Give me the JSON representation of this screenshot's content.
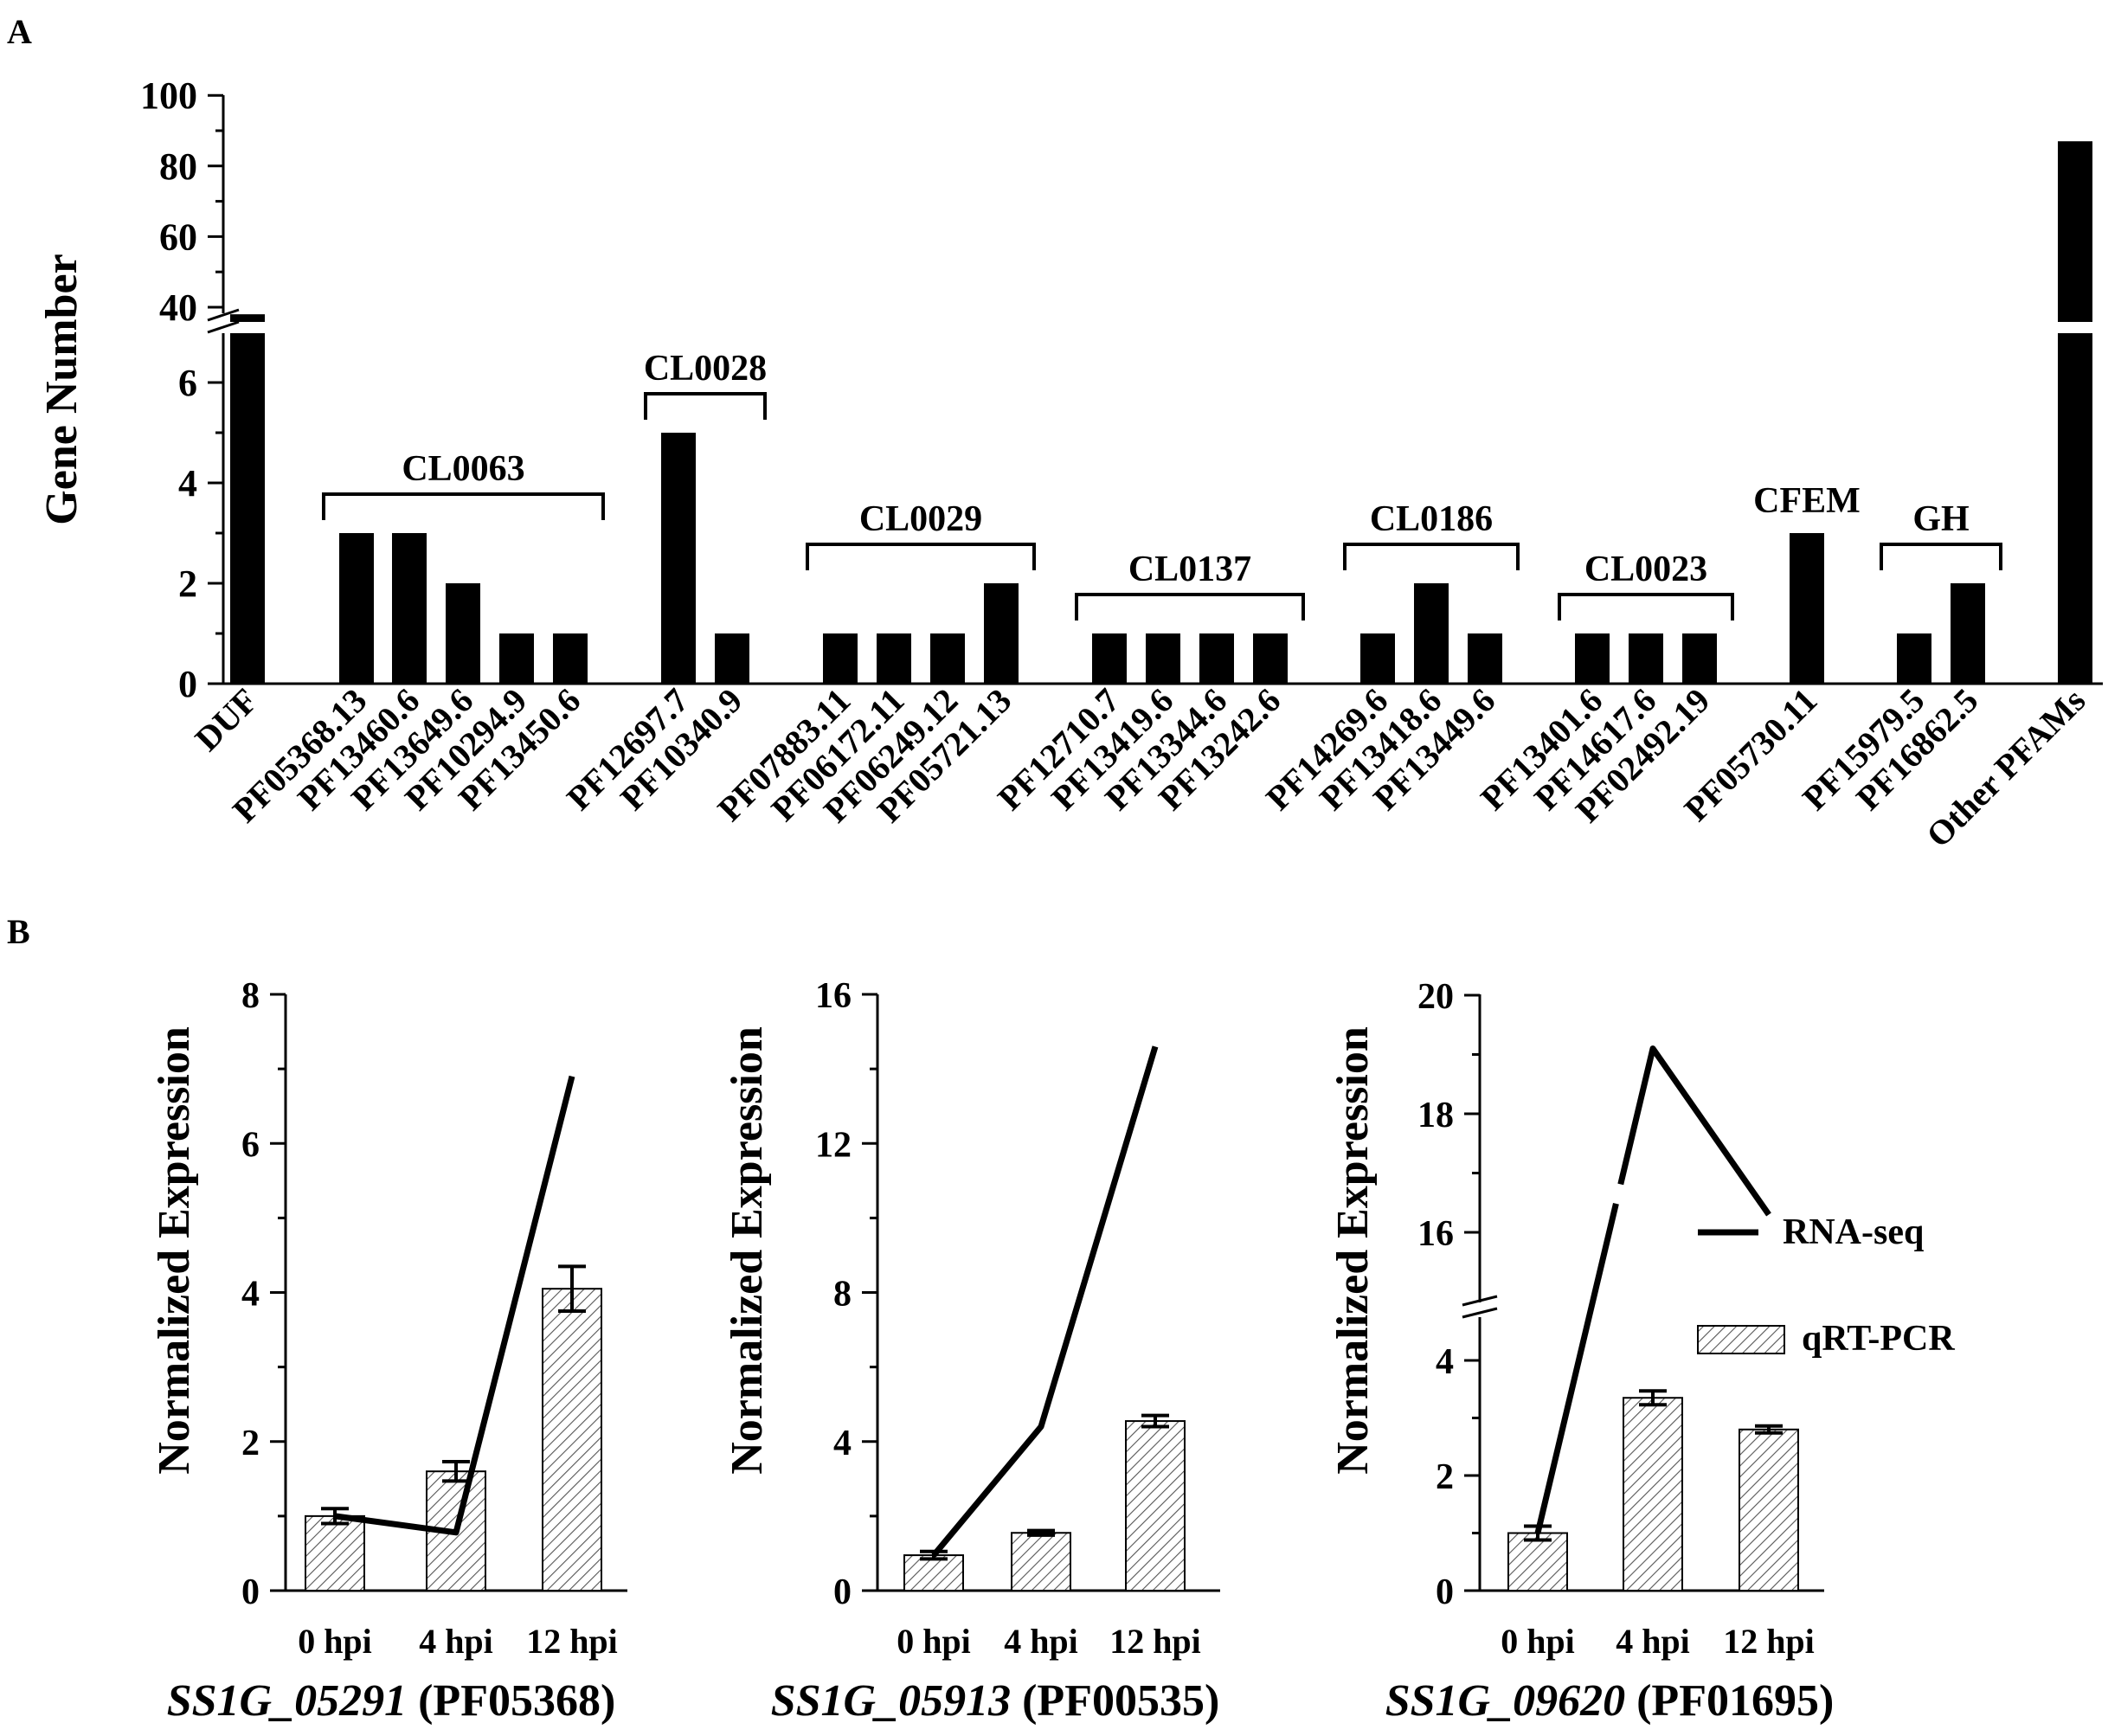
{
  "panel_a_label": "A",
  "panel_b_label": "B",
  "chart_data": [
    {
      "type": "bar",
      "panel": "A",
      "ylabel": "Gene Number",
      "y_lower_ticks": [
        "0",
        "2",
        "4",
        "6"
      ],
      "y_upper_ticks": [
        "40",
        "60",
        "80",
        "100"
      ],
      "y_lower_range": [
        0,
        7
      ],
      "y_upper_range": [
        35,
        100
      ],
      "y_break": true,
      "categories": [
        "DUF",
        "PF05368.13",
        "PF13460.6",
        "PF13649.6",
        "PF10294.9",
        "PF13450.6",
        "PF12697.7",
        "PF10340.9",
        "PF07883.11",
        "PF06172.11",
        "PF06249.12",
        "PF05721.13",
        "PF12710.7",
        "PF13419.6",
        "PF13344.6",
        "PF13242.6",
        "PF14269.6",
        "PF13418.6",
        "PF13449.6",
        "PF13401.6",
        "PF14617.6",
        "PF02492.19",
        "PF05730.11",
        "PF15979.5",
        "PF16862.5",
        "Other PFAMs"
      ],
      "values": [
        38,
        3,
        3,
        2,
        1,
        1,
        5,
        1,
        1,
        1,
        1,
        2,
        1,
        1,
        1,
        1,
        1,
        2,
        1,
        1,
        1,
        1,
        3,
        1,
        2,
        87
      ],
      "groups": [
        {
          "label": "CL0063",
          "from": 1,
          "to": 5
        },
        {
          "label": "CL0028",
          "from": 6,
          "to": 7
        },
        {
          "label": "CL0029",
          "from": 8,
          "to": 11
        },
        {
          "label": "CL0137",
          "from": 12,
          "to": 15
        },
        {
          "label": "CL0186",
          "from": 16,
          "to": 18
        },
        {
          "label": "CL0023",
          "from": 19,
          "to": 21
        },
        {
          "label": "CFEM",
          "from": 22,
          "to": 22
        },
        {
          "label": "GH",
          "from": 23,
          "to": 24
        }
      ]
    },
    {
      "type": "bar+line",
      "panel": "B1",
      "ylabel": "Normalized Expression",
      "gene": "SS1G_05291",
      "pfam": "(PF05368)",
      "categories": [
        "0 hpi",
        "4 hpi",
        "12 hpi"
      ],
      "ylim": [
        0,
        8
      ],
      "yticks": [
        "0",
        "2",
        "4",
        "6",
        "8"
      ],
      "series": [
        {
          "name": "qRT-PCR",
          "values": [
            1.0,
            1.6,
            4.05
          ],
          "errors": [
            0.1,
            0.13,
            0.3
          ]
        },
        {
          "name": "RNA-seq",
          "values": [
            1.0,
            0.78,
            6.9
          ]
        }
      ]
    },
    {
      "type": "bar+line",
      "panel": "B2",
      "ylabel": "Normalized Expression",
      "gene": "SS1G_05913",
      "pfam": "(PF00535)",
      "categories": [
        "0 hpi",
        "4 hpi",
        "12 hpi"
      ],
      "ylim": [
        0,
        16
      ],
      "yticks": [
        "0",
        "4",
        "8",
        "12",
        "16"
      ],
      "series": [
        {
          "name": "qRT-PCR",
          "values": [
            0.95,
            1.55,
            4.55
          ],
          "errors": [
            0.1,
            0.06,
            0.15
          ]
        },
        {
          "name": "RNA-seq",
          "values": [
            0.95,
            4.4,
            14.6
          ]
        }
      ]
    },
    {
      "type": "bar+line",
      "panel": "B3",
      "ylabel": "Normalized Expression",
      "gene": "SS1G_09620",
      "pfam": "(PF01695)",
      "categories": [
        "0 hpi",
        "4 hpi",
        "12 hpi"
      ],
      "y_lower_range": [
        0,
        5
      ],
      "y_upper_range": [
        15,
        20
      ],
      "y_break": true,
      "yticks_lower": [
        "0",
        "2",
        "4"
      ],
      "yticks_upper": [
        "16",
        "18",
        "20"
      ],
      "series": [
        {
          "name": "qRT-PCR",
          "values": [
            1.0,
            3.35,
            2.8
          ],
          "errors": [
            0.12,
            0.12,
            0.06
          ]
        },
        {
          "name": "RNA-seq",
          "values": [
            1.0,
            19.1,
            16.3
          ]
        }
      ]
    }
  ],
  "legend": [
    {
      "label": "RNA-seq",
      "kind": "line"
    },
    {
      "label": "qRT-PCR",
      "kind": "hatched-bar"
    }
  ]
}
